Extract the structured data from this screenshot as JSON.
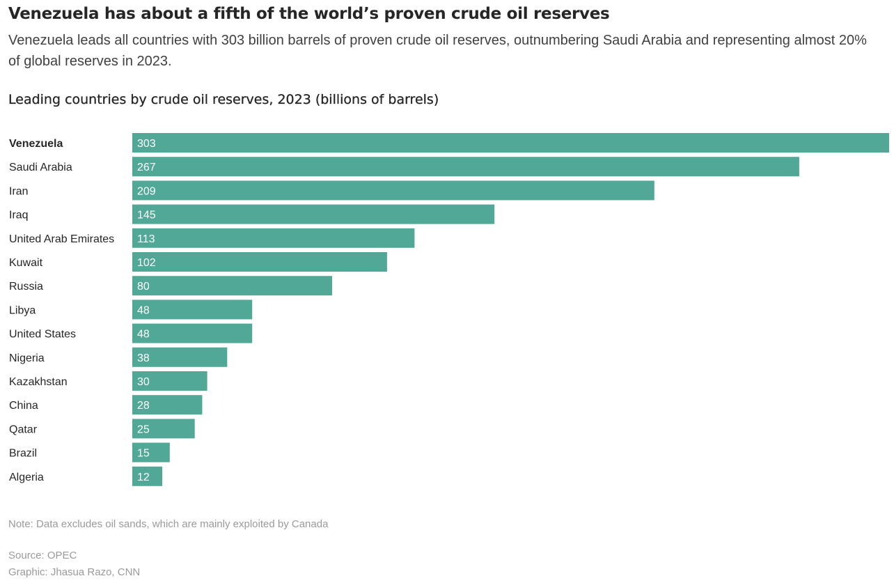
{
  "headline": "Venezuela has about a fifth of the world’s proven crude oil reserves",
  "dek": "Venezuela leads all countries with 303 billion barrels of proven crude oil reserves, outnumbering Saudi Arabia and representing almost 20% of global reserves in 2023.",
  "colors": {
    "bar": "#52a896",
    "bar_label": "#ffffff"
  },
  "chart_data": {
    "type": "bar",
    "orientation": "horizontal",
    "title": "Leading countries by crude oil reserves, 2023 (billions of barrels)",
    "categories": [
      "Venezuela",
      "Saudi Arabia",
      "Iran",
      "Iraq",
      "United Arab Emirates",
      "Kuwait",
      "Russia",
      "Libya",
      "United States",
      "Nigeria",
      "Kazakhstan",
      "China",
      "Qatar",
      "Brazil",
      "Algeria"
    ],
    "values": [
      303,
      267,
      209,
      145,
      113,
      102,
      80,
      48,
      48,
      38,
      30,
      28,
      25,
      15,
      12
    ],
    "highlighted_category": "Venezuela",
    "xlim": [
      0,
      303
    ],
    "grid": false,
    "data_labels": "inside-start"
  },
  "footer": {
    "note": "Note: Data excludes oil sands, which are mainly exploited by Canada",
    "source": "Source: OPEC",
    "credit": "Graphic: Jhasua Razo, CNN"
  }
}
